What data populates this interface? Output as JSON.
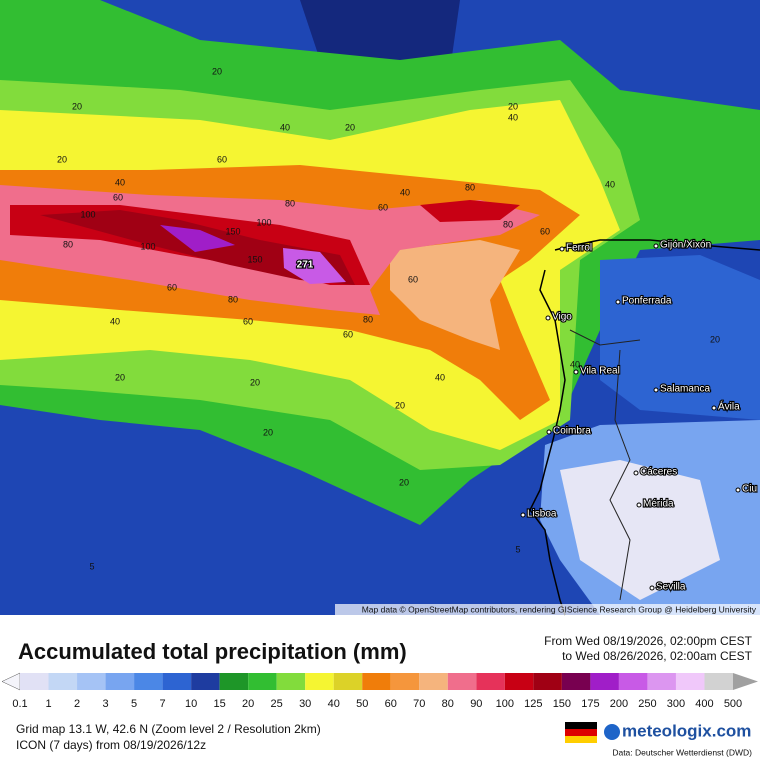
{
  "map": {
    "contour_labels": [
      "20",
      "20",
      "20",
      "20",
      "40",
      "40",
      "20",
      "40",
      "60",
      "60",
      "80",
      "40",
      "60",
      "80",
      "40",
      "100",
      "80",
      "100",
      "100",
      "150",
      "150",
      "271",
      "60",
      "80",
      "40",
      "60",
      "80",
      "60",
      "80",
      "60",
      "60",
      "40",
      "40",
      "20",
      "20",
      "20",
      "20",
      "5",
      "5",
      "20",
      "20"
    ],
    "places": [
      "Ferrol",
      "Gijón/Xixón",
      "Ponferrada",
      "Vigo",
      "Vila Real",
      "Salamanca",
      "Ávila",
      "Coimbra",
      "Cáceres",
      "Mérida",
      "Lisboa",
      "Sevilla",
      "Ciu"
    ],
    "attribution": "Map data © OpenStreetMap contributors, rendering GIScience Research Group @ Heidelberg University"
  },
  "header": {
    "title": "Accumulated total precipitation (mm)",
    "from": "From Wed 08/19/2026, 02:00pm CEST",
    "to": "to Wed 08/26/2026, 02:00am CEST"
  },
  "legend": {
    "ticks": [
      "0.1",
      "1",
      "2",
      "3",
      "5",
      "7",
      "10",
      "15",
      "20",
      "25",
      "30",
      "40",
      "50",
      "60",
      "70",
      "80",
      "90",
      "100",
      "125",
      "150",
      "175",
      "200",
      "250",
      "300",
      "400",
      "500"
    ],
    "colors": [
      "#f4f4fa",
      "#e1e1f5",
      "#c3d7f5",
      "#a5c3f5",
      "#78a5f0",
      "#4b87e6",
      "#2d64d2",
      "#1e3ca0",
      "#1e9628",
      "#32be32",
      "#82dc3c",
      "#f5f532",
      "#dcd228",
      "#f07d0a",
      "#f5963c",
      "#f5b47d",
      "#f06e8c",
      "#e6325a",
      "#c80014",
      "#a00014",
      "#780050",
      "#a01ec8",
      "#c85ae6",
      "#dc96f0",
      "#f0c8fa",
      "#d2d2d2",
      "#a0a0a0"
    ]
  },
  "footer": {
    "grid": "Grid map 13.1 W, 42.6 N (Zoom level 2 / Resolution 2km)",
    "model": "ICON (7 days) from 08/19/2026/12z",
    "brand": "meteologix.com",
    "source": "Data: Deutscher Wetterdienst (DWD)"
  }
}
